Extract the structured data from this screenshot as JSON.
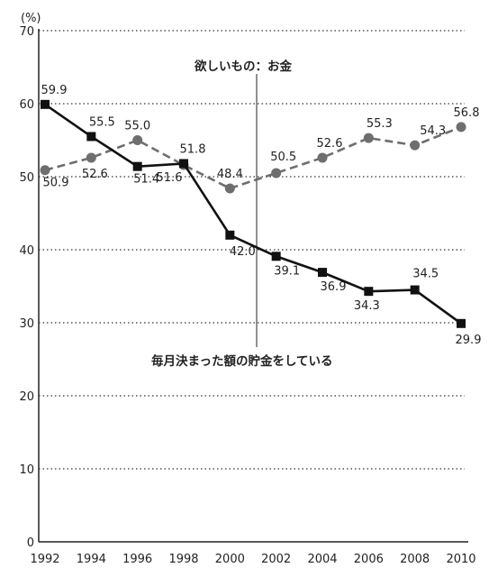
{
  "chart_data": {
    "type": "line",
    "ylabel": "(%)",
    "xlabel": "",
    "x": [
      1992,
      1994,
      1996,
      1998,
      2000,
      2002,
      2004,
      2006,
      2008,
      2010
    ],
    "ylim": [
      0,
      70
    ],
    "yticks": [
      0,
      10,
      20,
      30,
      40,
      50,
      60,
      70
    ],
    "grid": "horizontal dotted",
    "series": [
      {
        "name": "欲しいもの：お金",
        "style": "dashed",
        "marker": "circle",
        "color": "#6e6e6e",
        "values": [
          50.9,
          52.6,
          55.0,
          51.6,
          48.4,
          50.5,
          52.6,
          55.3,
          54.3,
          56.8
        ]
      },
      {
        "name": "毎月決まった額の貯金をしている",
        "style": "solid",
        "marker": "square",
        "color": "#111111",
        "values": [
          59.9,
          55.5,
          51.4,
          51.8,
          42.0,
          39.1,
          36.9,
          34.3,
          34.5,
          29.9
        ]
      }
    ]
  }
}
